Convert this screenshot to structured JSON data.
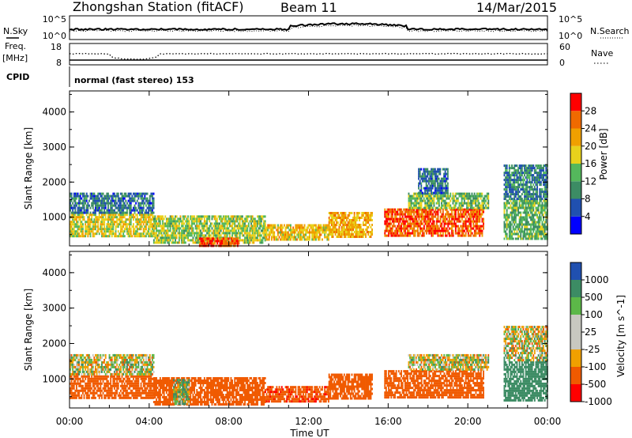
{
  "header": {
    "title": "Zhongshan Station (fitACF)",
    "beam": "Beam 11",
    "date": "14/Mar/2015"
  },
  "strip_labels": {
    "nsky": "N.Sky",
    "nsearch": "N.Search",
    "freq_top": "Freq.",
    "freq_unit": "[MHz]",
    "nave": "Nave",
    "cpid": "CPID",
    "mode": "normal (fast stereo) 153"
  },
  "strip_ticks": {
    "noise_left": [
      "10^5",
      "10^0"
    ],
    "noise_right": [
      "10^5",
      "10^0"
    ],
    "freq_left": [
      "18",
      "8"
    ],
    "freq_right": [
      "60",
      "0"
    ]
  },
  "panels": {
    "power": {
      "ylabel": "Slant Range [km]",
      "cbar_label": "Power [dB]",
      "yticks": [
        "4000",
        "3000",
        "2000",
        "1000"
      ],
      "cbar_ticks": [
        "28",
        "24",
        "20",
        "16",
        "12",
        "8",
        "4"
      ]
    },
    "velocity": {
      "ylabel": "Slant Range [km]",
      "cbar_label": "Velocity [m s^-1]",
      "yticks": [
        "4000",
        "3000",
        "2000",
        "1000"
      ],
      "cbar_ticks": [
        "1000",
        "500",
        "100",
        "25",
        "-25",
        "-100",
        "-500",
        "-1000"
      ]
    }
  },
  "x_axis": {
    "label": "Time UT",
    "ticks": [
      "00:00",
      "04:00",
      "08:00",
      "12:00",
      "16:00",
      "20:00",
      "00:00"
    ]
  },
  "colors": {
    "power_scale": [
      "#0000ff",
      "#2050b0",
      "#3c8c64",
      "#54b85c",
      "#e8d21c",
      "#f0a000",
      "#f06a00",
      "#ff0000"
    ],
    "velocity_scale": [
      "#ff0000",
      "#f05a00",
      "#f0a000",
      "#c8c8c0",
      "#c8c8c0",
      "#5cb848",
      "#3c8c64",
      "#2050b0"
    ]
  },
  "chart_data": [
    {
      "type": "heatmap",
      "title": "Power",
      "xlabel": "Time UT",
      "ylabel": "Slant Range [km]",
      "colorbar_label": "Power [dB]",
      "x_range_hours": [
        0,
        24
      ],
      "y_range_km": [
        180,
        4600
      ],
      "color_range": [
        0,
        32
      ],
      "color_ticks": [
        4,
        8,
        12,
        16,
        20,
        24,
        28
      ],
      "regions": [
        {
          "t0": 0.0,
          "t1": 4.2,
          "r0": 450,
          "r1": 1100,
          "value": 18
        },
        {
          "t0": 0.0,
          "t1": 4.2,
          "r0": 1100,
          "r1": 1700,
          "value": 8
        },
        {
          "t0": 4.2,
          "t1": 9.8,
          "r0": 250,
          "r1": 1050,
          "value": 16
        },
        {
          "t0": 6.5,
          "t1": 8.5,
          "r0": 180,
          "r1": 420,
          "value": 27
        },
        {
          "t0": 9.8,
          "t1": 13.0,
          "r0": 350,
          "r1": 800,
          "value": 20
        },
        {
          "t0": 13.0,
          "t1": 15.2,
          "r0": 450,
          "r1": 1150,
          "value": 21
        },
        {
          "t0": 15.8,
          "t1": 20.8,
          "r0": 450,
          "r1": 1250,
          "value": 27
        },
        {
          "t0": 17.0,
          "t1": 21.0,
          "r0": 1250,
          "r1": 1700,
          "value": 14
        },
        {
          "t0": 17.5,
          "t1": 19.0,
          "r0": 1700,
          "r1": 2400,
          "value": 8
        },
        {
          "t0": 21.8,
          "t1": 24.0,
          "r0": 400,
          "r1": 1500,
          "value": 13
        },
        {
          "t0": 21.8,
          "t1": 24.0,
          "r0": 1500,
          "r1": 2500,
          "value": 9
        }
      ]
    },
    {
      "type": "heatmap",
      "title": "Velocity",
      "xlabel": "Time UT",
      "ylabel": "Slant Range [km]",
      "colorbar_label": "Velocity [m s^-1]",
      "x_range_hours": [
        0,
        24
      ],
      "y_range_km": [
        180,
        4600
      ],
      "color_ticks": [
        -1000,
        -500,
        -100,
        -25,
        25,
        100,
        500,
        1000
      ],
      "regions": [
        {
          "t0": 0.0,
          "t1": 4.2,
          "r0": 450,
          "r1": 1100,
          "value": -300
        },
        {
          "t0": 0.0,
          "t1": 4.2,
          "r0": 1100,
          "r1": 1700,
          "value": 0
        },
        {
          "t0": 4.2,
          "t1": 9.8,
          "r0": 250,
          "r1": 1050,
          "value": -300
        },
        {
          "t0": 5.2,
          "t1": 6.0,
          "r0": 300,
          "r1": 1000,
          "value": 80
        },
        {
          "t0": 9.8,
          "t1": 13.0,
          "r0": 350,
          "r1": 800,
          "value": -400
        },
        {
          "t0": 13.0,
          "t1": 15.2,
          "r0": 450,
          "r1": 1150,
          "value": -300
        },
        {
          "t0": 15.8,
          "t1": 20.8,
          "r0": 450,
          "r1": 1250,
          "value": -250
        },
        {
          "t0": 17.0,
          "t1": 21.0,
          "r0": 1250,
          "r1": 1700,
          "value": 0
        },
        {
          "t0": 21.8,
          "t1": 24.0,
          "r0": 400,
          "r1": 1500,
          "value": 300
        },
        {
          "t0": 21.8,
          "t1": 24.0,
          "r0": 1500,
          "r1": 2500,
          "value": 0
        }
      ]
    }
  ]
}
